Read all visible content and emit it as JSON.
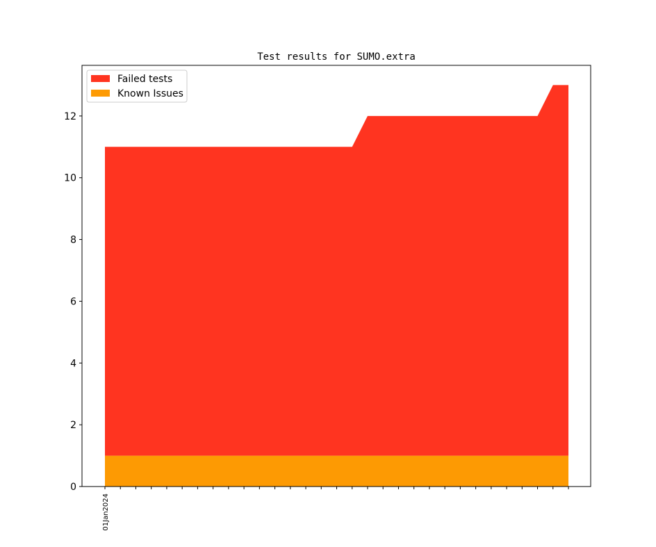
{
  "chart_data": {
    "type": "area",
    "stacked": true,
    "title": "Test results for SUMO.extra",
    "categories": [
      "01Jan2024",
      null,
      null,
      null,
      null,
      null,
      null,
      null,
      null,
      null,
      null,
      null,
      null,
      null,
      null,
      null,
      null,
      null,
      null,
      null,
      null,
      null,
      null,
      null,
      null,
      null,
      null,
      null,
      null,
      null,
      null
    ],
    "series": [
      {
        "name": "Failed tests",
        "color": "#ff3420",
        "values": [
          10,
          10,
          10,
          10,
          10,
          10,
          10,
          10,
          10,
          10,
          10,
          10,
          10,
          10,
          10,
          10,
          10,
          11,
          11,
          11,
          11,
          11,
          11,
          11,
          11,
          11,
          11,
          11,
          11,
          12,
          12
        ]
      },
      {
        "name": "Known Issues",
        "color": "#fd9a03",
        "values": [
          1,
          1,
          1,
          1,
          1,
          1,
          1,
          1,
          1,
          1,
          1,
          1,
          1,
          1,
          1,
          1,
          1,
          1,
          1,
          1,
          1,
          1,
          1,
          1,
          1,
          1,
          1,
          1,
          1,
          1,
          1
        ]
      }
    ],
    "stack_order": [
      1,
      0
    ],
    "ylim": [
      0,
      13.64
    ],
    "yticks": [
      0,
      2,
      4,
      6,
      8,
      10,
      12
    ],
    "grid": false,
    "legend": "upper left"
  }
}
